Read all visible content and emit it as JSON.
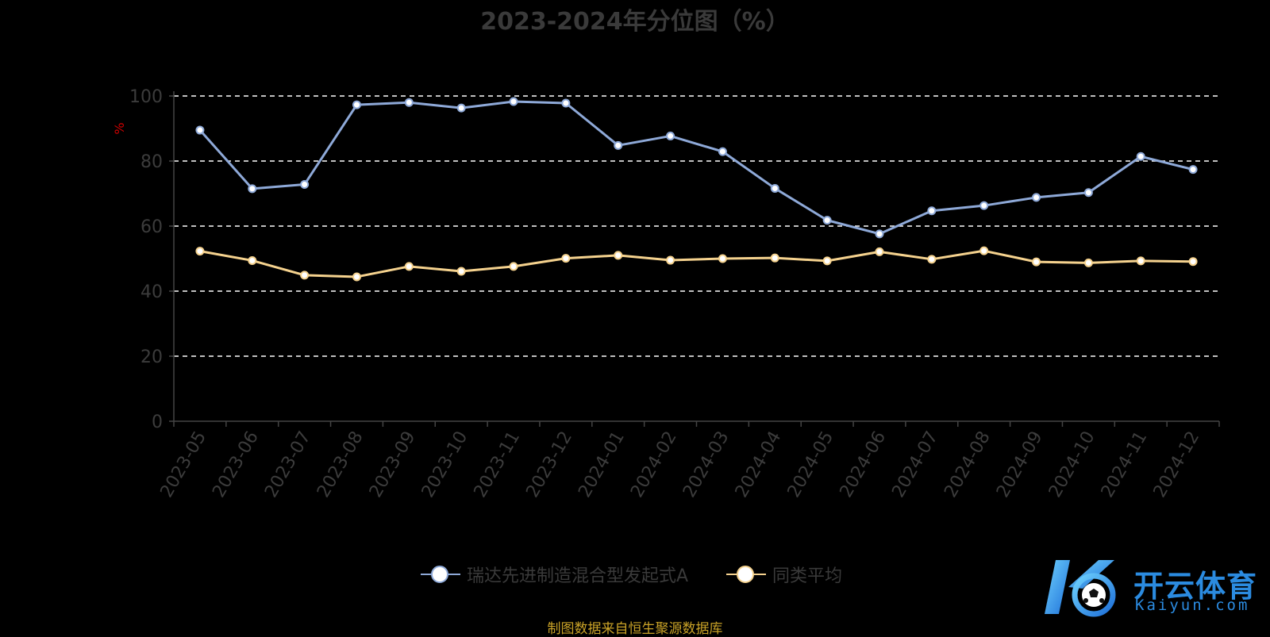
{
  "title": "2023-2024年分位图（%）",
  "source_note": "制图数据来自恒生聚源数据库",
  "logo": {
    "text_cn": "开云体育",
    "text_en": "Kaiyun.com"
  },
  "chart_data": {
    "type": "line",
    "title": "2023-2024年分位图（%）",
    "xlabel": "",
    "ylabel": "%",
    "ylim": [
      0,
      100
    ],
    "yticks": [
      0,
      20,
      40,
      60,
      80,
      100
    ],
    "grid": true,
    "legend_position": "bottom-center",
    "categories": [
      "2023-05",
      "2023-06",
      "2023-07",
      "2023-08",
      "2023-09",
      "2023-10",
      "2023-11",
      "2023-12",
      "2024-01",
      "2024-02",
      "2024-03",
      "2024-04",
      "2024-05",
      "2024-06",
      "2024-07",
      "2024-08",
      "2024-09",
      "2024-10",
      "2024-11",
      "2024-12"
    ],
    "series": [
      {
        "name": "瑞达先进制造混合型发起式A",
        "color": "#8ea9d8",
        "values": [
          89.5,
          71.5,
          72.8,
          97.3,
          98.0,
          96.3,
          98.3,
          97.8,
          84.8,
          87.7,
          82.9,
          71.6,
          61.8,
          57.6,
          64.7,
          66.3,
          68.8,
          70.3,
          81.4,
          77.4
        ]
      },
      {
        "name": "同类平均",
        "color": "#f5d28e",
        "values": [
          52.3,
          49.4,
          44.9,
          44.4,
          47.6,
          46.1,
          47.6,
          50.1,
          51.0,
          49.5,
          50.0,
          50.2,
          49.3,
          52.1,
          49.8,
          52.4,
          49.0,
          48.7,
          49.3,
          49.1
        ]
      }
    ]
  }
}
